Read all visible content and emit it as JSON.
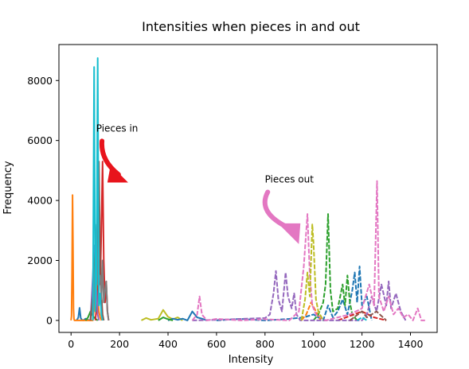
{
  "chart_data": {
    "type": "line",
    "title": "Intensities when pieces in and out",
    "xlabel": "Intensity",
    "ylabel": "Frequency",
    "xlim": [
      -50,
      1510
    ],
    "ylim": [
      -400,
      9200
    ],
    "xticks": [
      0,
      200,
      400,
      600,
      800,
      1000,
      1200,
      1400
    ],
    "yticks": [
      0,
      2000,
      4000,
      6000,
      8000
    ],
    "grid": false,
    "annotations": [
      {
        "text": "Pieces in",
        "x": 190,
        "y": 6300,
        "arrow_to": [
          150,
          4600
        ],
        "arrow_color": "#e8141c"
      },
      {
        "text": "Pieces out",
        "x": 900,
        "y": 4600,
        "arrow_to": [
          900,
          2600
        ],
        "arrow_color": "#e377c2"
      }
    ],
    "series": [
      {
        "group": "in",
        "style": "solid",
        "color": "#1f77b4",
        "points": [
          [
            20,
            0
          ],
          [
            25,
            20
          ],
          [
            30,
            100
          ],
          [
            35,
            420
          ],
          [
            40,
            80
          ],
          [
            45,
            20
          ],
          [
            50,
            0
          ],
          [
            60,
            60
          ],
          [
            70,
            20
          ],
          [
            80,
            0
          ]
        ]
      },
      {
        "group": "in",
        "style": "solid",
        "color": "#ff7f0e",
        "points": [
          [
            0,
            0
          ],
          [
            2,
            150
          ],
          [
            4,
            1500
          ],
          [
            6,
            4180
          ],
          [
            8,
            2500
          ],
          [
            10,
            400
          ],
          [
            12,
            50
          ],
          [
            14,
            0
          ],
          [
            90,
            0
          ],
          [
            95,
            400
          ],
          [
            100,
            1500
          ],
          [
            105,
            2000
          ],
          [
            110,
            800
          ],
          [
            115,
            300
          ],
          [
            120,
            100
          ],
          [
            125,
            0
          ]
        ]
      },
      {
        "group": "in",
        "style": "solid",
        "color": "#2ca02c",
        "points": [
          [
            60,
            0
          ],
          [
            70,
            100
          ],
          [
            80,
            300
          ],
          [
            90,
            150
          ],
          [
            100,
            60
          ],
          [
            110,
            0
          ]
        ]
      },
      {
        "group": "in",
        "style": "solid",
        "color": "#d62728",
        "points": [
          [
            100,
            0
          ],
          [
            110,
            800
          ],
          [
            115,
            2000
          ],
          [
            120,
            1200
          ],
          [
            125,
            3000
          ],
          [
            130,
            5300
          ],
          [
            135,
            2000
          ],
          [
            140,
            600
          ],
          [
            145,
            1300
          ],
          [
            150,
            300
          ],
          [
            155,
            0
          ]
        ]
      },
      {
        "group": "in",
        "style": "solid",
        "color": "#9467bd",
        "points": [
          [
            80,
            0
          ],
          [
            90,
            1500
          ],
          [
            95,
            2500
          ],
          [
            100,
            800
          ],
          [
            105,
            1000
          ],
          [
            110,
            200
          ],
          [
            115,
            0
          ]
        ]
      },
      {
        "group": "in",
        "style": "solid",
        "color": "#8c564b",
        "points": [
          [
            80,
            0
          ],
          [
            90,
            800
          ],
          [
            100,
            2400
          ],
          [
            110,
            1200
          ],
          [
            115,
            5300
          ],
          [
            120,
            2000
          ],
          [
            125,
            900
          ],
          [
            130,
            200
          ],
          [
            135,
            0
          ]
        ]
      },
      {
        "group": "in",
        "style": "solid",
        "color": "#7f7f7f",
        "points": [
          [
            90,
            0
          ],
          [
            100,
            2000
          ],
          [
            105,
            3200
          ],
          [
            110,
            1200
          ],
          [
            120,
            1500
          ],
          [
            125,
            700
          ],
          [
            130,
            2000
          ],
          [
            135,
            600
          ],
          [
            140,
            1000
          ],
          [
            145,
            1300
          ],
          [
            150,
            300
          ],
          [
            155,
            0
          ]
        ]
      },
      {
        "group": "in",
        "style": "solid",
        "color": "#17becf",
        "points": [
          [
            90,
            0
          ],
          [
            95,
            8450
          ],
          [
            100,
            300
          ],
          [
            105,
            1500
          ],
          [
            110,
            8750
          ],
          [
            115,
            500
          ],
          [
            120,
            900
          ],
          [
            125,
            200
          ],
          [
            130,
            0
          ]
        ]
      },
      {
        "group": "out",
        "style": "solid",
        "color": "#bcbd22",
        "points": [
          [
            290,
            0
          ],
          [
            310,
            80
          ],
          [
            330,
            20
          ],
          [
            360,
            60
          ],
          [
            380,
            350
          ],
          [
            400,
            120
          ],
          [
            420,
            40
          ],
          [
            440,
            100
          ],
          [
            460,
            0
          ]
        ]
      },
      {
        "group": "out",
        "style": "solid",
        "color": "#1f77b4",
        "points": [
          [
            400,
            0
          ],
          [
            420,
            60
          ],
          [
            440,
            20
          ],
          [
            460,
            60
          ],
          [
            480,
            0
          ],
          [
            500,
            300
          ],
          [
            520,
            100
          ],
          [
            540,
            60
          ],
          [
            560,
            0
          ]
        ]
      },
      {
        "group": "out",
        "style": "solid",
        "color": "#2ca02c",
        "points": [
          [
            360,
            0
          ],
          [
            380,
            100
          ],
          [
            400,
            40
          ],
          [
            420,
            0
          ]
        ]
      },
      {
        "group": "out",
        "style": "dashed",
        "color": "#1f77b4",
        "points": [
          [
            600,
            0
          ],
          [
            700,
            50
          ],
          [
            800,
            0
          ],
          [
            900,
            50
          ],
          [
            960,
            100
          ],
          [
            1000,
            200
          ],
          [
            1040,
            0
          ],
          [
            1060,
            500
          ],
          [
            1080,
            100
          ],
          [
            1100,
            300
          ],
          [
            1120,
            700
          ],
          [
            1140,
            200
          ],
          [
            1160,
            1000
          ],
          [
            1170,
            1600
          ],
          [
            1180,
            600
          ],
          [
            1190,
            1800
          ],
          [
            1200,
            500
          ],
          [
            1220,
            800
          ],
          [
            1240,
            0
          ]
        ]
      },
      {
        "group": "out",
        "style": "dashed",
        "color": "#ff7f0e",
        "points": [
          [
            950,
            0
          ],
          [
            970,
            200
          ],
          [
            990,
            600
          ],
          [
            1010,
            300
          ],
          [
            1030,
            0
          ]
        ]
      },
      {
        "group": "out",
        "style": "dashed",
        "color": "#2ca02c",
        "points": [
          [
            1000,
            0
          ],
          [
            1020,
            200
          ],
          [
            1040,
            600
          ],
          [
            1050,
            1200
          ],
          [
            1060,
            3550
          ],
          [
            1070,
            1000
          ],
          [
            1080,
            300
          ],
          [
            1100,
            400
          ],
          [
            1120,
            1200
          ],
          [
            1130,
            500
          ],
          [
            1140,
            1500
          ],
          [
            1150,
            600
          ],
          [
            1160,
            200
          ],
          [
            1180,
            0
          ]
        ]
      },
      {
        "group": "out",
        "style": "dashed",
        "color": "#d62728",
        "points": [
          [
            1100,
            0
          ],
          [
            1150,
            150
          ],
          [
            1200,
            300
          ],
          [
            1250,
            100
          ],
          [
            1300,
            0
          ]
        ]
      },
      {
        "group": "out",
        "style": "dashed",
        "color": "#9467bd",
        "points": [
          [
            500,
            0
          ],
          [
            600,
            20
          ],
          [
            700,
            50
          ],
          [
            800,
            80
          ],
          [
            820,
            200
          ],
          [
            835,
            900
          ],
          [
            845,
            1650
          ],
          [
            855,
            700
          ],
          [
            870,
            300
          ],
          [
            885,
            1600
          ],
          [
            895,
            800
          ],
          [
            910,
            400
          ],
          [
            920,
            900
          ],
          [
            930,
            200
          ],
          [
            945,
            0
          ],
          [
            1200,
            0
          ],
          [
            1220,
            200
          ],
          [
            1240,
            800
          ],
          [
            1260,
            300
          ],
          [
            1280,
            1200
          ],
          [
            1300,
            500
          ],
          [
            1310,
            1300
          ],
          [
            1320,
            400
          ],
          [
            1340,
            900
          ],
          [
            1360,
            300
          ],
          [
            1380,
            0
          ]
        ]
      },
      {
        "group": "out",
        "style": "dashed",
        "color": "#8c564b",
        "points": [
          [
            1150,
            0
          ],
          [
            1200,
            300
          ],
          [
            1220,
            100
          ],
          [
            1260,
            300
          ],
          [
            1300,
            0
          ]
        ]
      },
      {
        "group": "out",
        "style": "dashed",
        "color": "#e377c2",
        "points": [
          [
            500,
            0
          ],
          [
            520,
            200
          ],
          [
            530,
            800
          ],
          [
            540,
            200
          ],
          [
            560,
            0
          ],
          [
            600,
            50
          ],
          [
            700,
            0
          ],
          [
            800,
            40
          ],
          [
            900,
            0
          ],
          [
            940,
            300
          ],
          [
            960,
            1800
          ],
          [
            975,
            3550
          ],
          [
            985,
            1500
          ],
          [
            995,
            500
          ],
          [
            1010,
            200
          ],
          [
            1050,
            0
          ],
          [
            1150,
            200
          ],
          [
            1200,
            400
          ],
          [
            1230,
            1200
          ],
          [
            1250,
            500
          ],
          [
            1262,
            4650
          ],
          [
            1270,
            800
          ],
          [
            1290,
            300
          ],
          [
            1310,
            800
          ],
          [
            1330,
            200
          ],
          [
            1350,
            400
          ],
          [
            1370,
            100
          ],
          [
            1390,
            200
          ],
          [
            1410,
            0
          ],
          [
            1430,
            400
          ],
          [
            1445,
            0
          ],
          [
            1460,
            0
          ]
        ]
      },
      {
        "group": "out",
        "style": "dashed",
        "color": "#bcbd22",
        "points": [
          [
            950,
            0
          ],
          [
            965,
            700
          ],
          [
            975,
            1600
          ],
          [
            985,
            800
          ],
          [
            995,
            3200
          ],
          [
            1000,
            2600
          ],
          [
            1010,
            700
          ],
          [
            1020,
            300
          ],
          [
            1040,
            0
          ]
        ]
      },
      {
        "group": "out",
        "style": "dashed",
        "color": "#17becf",
        "points": [
          [
            1180,
            0
          ],
          [
            1200,
            100
          ],
          [
            1220,
            0
          ]
        ]
      }
    ]
  }
}
